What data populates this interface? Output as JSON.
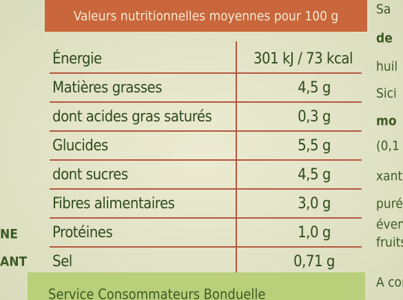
{
  "header": {
    "title": "Valeurs nutritionnelles moyennes pour 100 g"
  },
  "table": {
    "rows": [
      [
        "Énergie",
        "301 kJ / 73 kcal"
      ],
      [
        "Matières grasses",
        "4,5 g"
      ],
      [
        "dont acides gras saturés",
        "0,3 g"
      ],
      [
        "Glucides",
        "5,5 g"
      ],
      [
        "dont sucres",
        "4,5 g"
      ],
      [
        "Fibres alimentaires",
        "3,0 g"
      ],
      [
        "Protéines",
        "1,0 g"
      ],
      [
        "Sel",
        "0,71 g"
      ]
    ]
  },
  "side_text": {
    "right": [
      "Sa",
      "de",
      "huil",
      "Sici",
      "mo",
      "(0,1",
      "xanth",
      "purée",
      "éventu",
      "fruits",
      "A cons"
    ],
    "left": [
      "NE",
      "ANT"
    ]
  },
  "footer": "Service Consommateurs Bonduelle"
}
